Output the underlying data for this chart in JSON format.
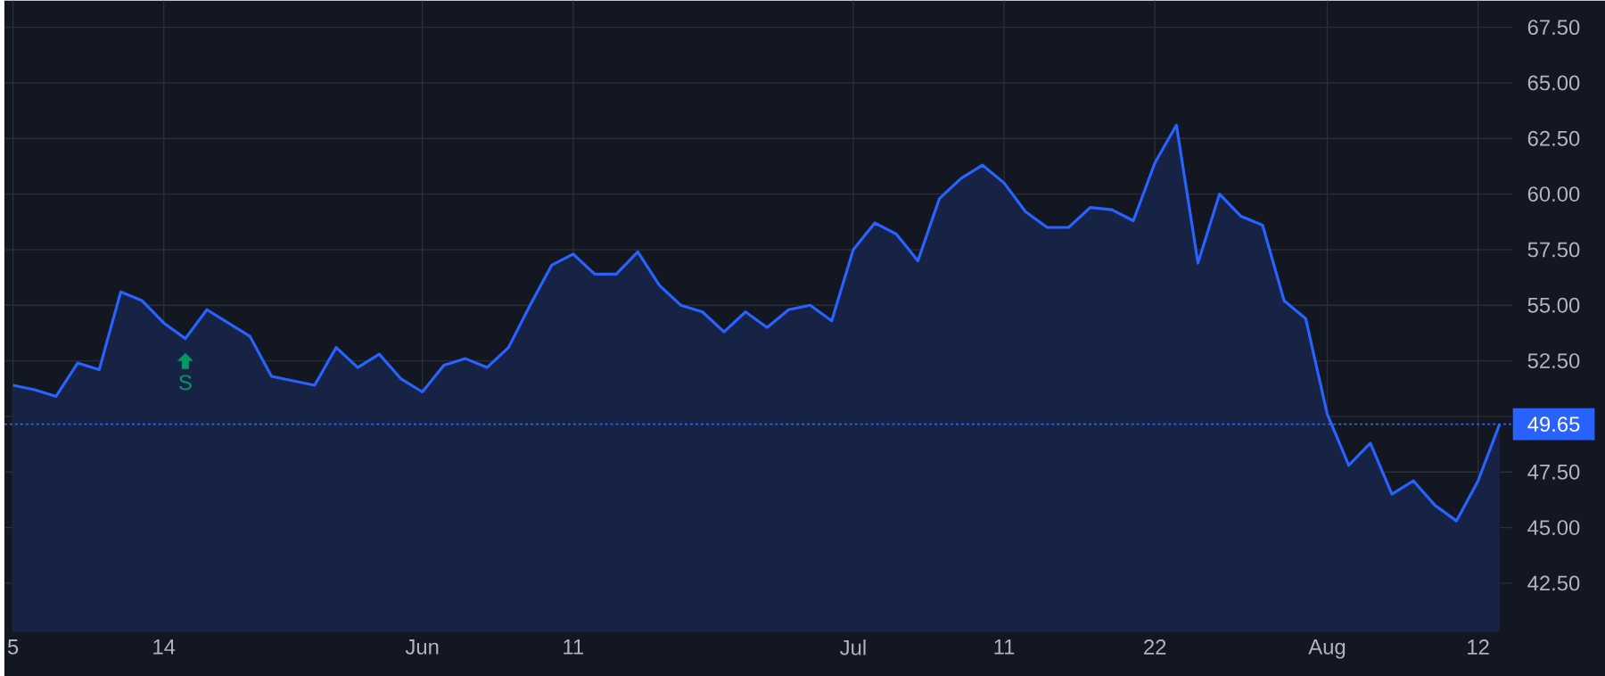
{
  "chart_data": {
    "type": "area",
    "color": "#2962ff",
    "categories": [
      "5",
      null,
      null,
      null,
      null,
      null,
      null,
      "14",
      null,
      null,
      null,
      null,
      null,
      null,
      null,
      null,
      null,
      null,
      null,
      "Jun",
      null,
      null,
      null,
      null,
      null,
      null,
      "11",
      null,
      null,
      null,
      null,
      null,
      null,
      null,
      null,
      null,
      null,
      null,
      null,
      "Jul",
      null,
      null,
      null,
      null,
      null,
      null,
      "11",
      null,
      null,
      null,
      null,
      null,
      null,
      "22",
      null,
      null,
      null,
      null,
      null,
      null,
      null,
      "Aug",
      null,
      null,
      null,
      null,
      null,
      null,
      "12",
      null
    ],
    "values": [
      51.4,
      51.2,
      50.9,
      52.4,
      52.1,
      55.6,
      55.2,
      54.2,
      53.5,
      54.8,
      54.2,
      53.6,
      51.8,
      51.6,
      51.4,
      53.1,
      52.2,
      52.8,
      51.7,
      51.1,
      52.3,
      52.6,
      52.2,
      53.1,
      55.0,
      56.8,
      57.3,
      56.4,
      56.4,
      57.4,
      55.9,
      55.0,
      54.7,
      53.8,
      54.7,
      54.0,
      54.8,
      55.0,
      54.3,
      57.5,
      58.7,
      58.2,
      57.0,
      59.8,
      60.7,
      61.3,
      60.5,
      59.2,
      58.5,
      58.5,
      59.4,
      59.3,
      58.8,
      61.4,
      63.1,
      56.9,
      60.0,
      59.0,
      58.6,
      55.2,
      54.4,
      50.1,
      47.8,
      48.8,
      46.5,
      47.1,
      46.0,
      45.3,
      47.1,
      49.65
    ],
    "ylim": [
      40.3,
      68.7
    ],
    "yticks": [
      {
        "value": 42.5,
        "label": "42.50"
      },
      {
        "value": 45,
        "label": "45.00"
      },
      {
        "value": 47.5,
        "label": "47.50"
      },
      {
        "value": 50,
        "label": null
      },
      {
        "value": 52.5,
        "label": "52.50"
      },
      {
        "value": 55,
        "label": "55.00"
      },
      {
        "value": 57.5,
        "label": "57.50"
      },
      {
        "value": 60,
        "label": "60.00"
      },
      {
        "value": 62.5,
        "label": "62.50"
      },
      {
        "value": 65,
        "label": "65.00"
      },
      {
        "value": 67.5,
        "label": "67.50"
      }
    ],
    "grid": true,
    "ref_lines": [
      {
        "axis": "y",
        "value": 49.65,
        "label": "49.65",
        "color": "#2962ff",
        "line_style": "dotted"
      }
    ],
    "annotations": [
      "S"
    ]
  }
}
